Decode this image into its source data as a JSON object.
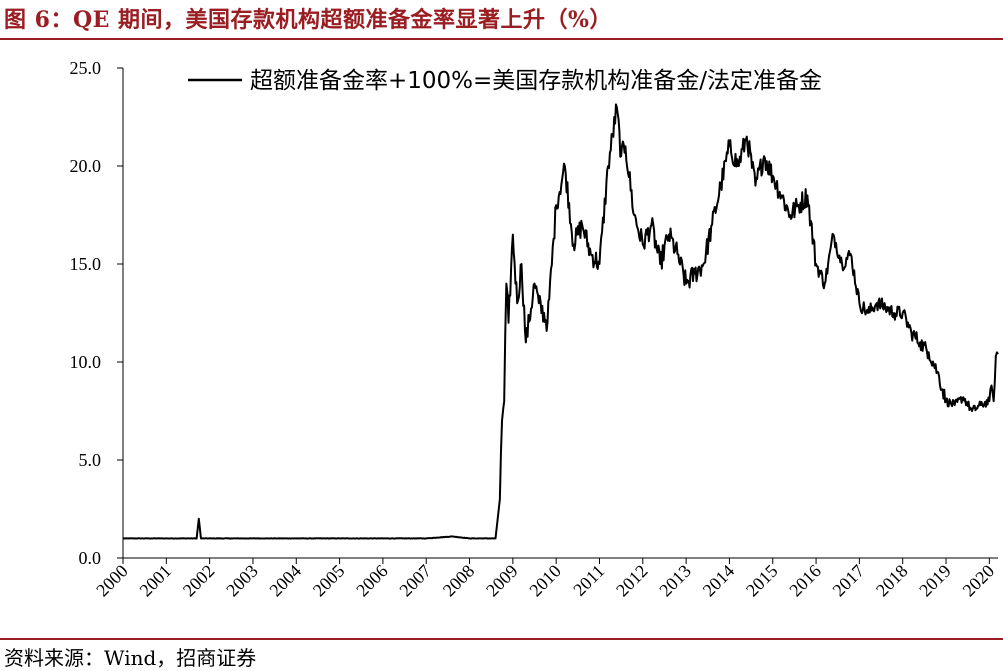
{
  "header": {
    "title": "图 6：QE 期间，美国存款机构超额准备金率显著上升（%）"
  },
  "footer": {
    "source": "资料来源：Wind，招商证券"
  },
  "chart_data": {
    "type": "line",
    "title": "图 6：QE 期间，美国存款机构超额准备金率显著上升（%）",
    "xlabel": "",
    "ylabel": "",
    "x_range": [
      2000,
      2020.2
    ],
    "ylim": [
      0,
      25
    ],
    "y_ticks": [
      "0.0",
      "5.0",
      "10.0",
      "15.0",
      "20.0",
      "25.0"
    ],
    "x_ticks": [
      "2000",
      "2001",
      "2002",
      "2003",
      "2004",
      "2005",
      "2006",
      "2007",
      "2008",
      "2009",
      "2010",
      "2011",
      "2012",
      "2013",
      "2014",
      "2015",
      "2016",
      "2017",
      "2018",
      "2019",
      "2020"
    ],
    "grid": false,
    "legend_position": "top",
    "series": [
      {
        "name": "超额准备金率+100%=美国存款机构准备金/法定准备金",
        "color": "#000000",
        "x": [
          2000,
          2001.7,
          2001.75,
          2001.8,
          2002.5,
          2003,
          2004,
          2005,
          2006,
          2007,
          2007.6,
          2008,
          2008.6,
          2008.7,
          2008.75,
          2008.8,
          2008.85,
          2008.9,
          2009,
          2009.1,
          2009.2,
          2009.3,
          2009.5,
          2009.6,
          2009.8,
          2010,
          2010.2,
          2010.4,
          2010.6,
          2010.8,
          2011,
          2011.2,
          2011.4,
          2011.5,
          2011.6,
          2011.8,
          2012,
          2012.2,
          2012.4,
          2012.6,
          2012.8,
          2013,
          2013.2,
          2013.4,
          2013.6,
          2013.8,
          2014,
          2014.2,
          2014.4,
          2014.6,
          2014.8,
          2015,
          2015.2,
          2015.4,
          2015.6,
          2015.8,
          2016,
          2016.2,
          2016.4,
          2016.6,
          2016.8,
          2017,
          2017.2,
          2017.4,
          2017.6,
          2017.8,
          2018,
          2018.2,
          2018.4,
          2018.6,
          2018.8,
          2019,
          2019.2,
          2019.4,
          2019.6,
          2019.8,
          2020,
          2020.05,
          2020.1,
          2020.15,
          2020.2
        ],
        "values": [
          1.0,
          1.0,
          2.0,
          1.0,
          1.0,
          1.0,
          1.0,
          1.0,
          1.0,
          1.0,
          1.1,
          1.0,
          1.0,
          3.0,
          7.0,
          8.0,
          14.0,
          12.0,
          16.5,
          13.0,
          15.0,
          11.0,
          14.0,
          13.0,
          12.0,
          18.0,
          20.0,
          16.0,
          17.0,
          15.5,
          15.0,
          20.0,
          23.0,
          20.5,
          21.0,
          17.5,
          16.0,
          17.0,
          15.0,
          16.5,
          15.5,
          14.0,
          14.5,
          15.0,
          17.0,
          19.0,
          21.0,
          20.0,
          21.5,
          19.0,
          20.5,
          19.5,
          18.5,
          17.5,
          18.0,
          18.5,
          15.0,
          14.0,
          16.5,
          15.0,
          15.5,
          13.0,
          12.5,
          13.0,
          12.8,
          12.5,
          12.5,
          11.5,
          11.0,
          10.5,
          9.5,
          8.0,
          7.8,
          8.2,
          7.5,
          7.8,
          8.0,
          8.8,
          8.0,
          10.3,
          10.4
        ]
      }
    ]
  }
}
